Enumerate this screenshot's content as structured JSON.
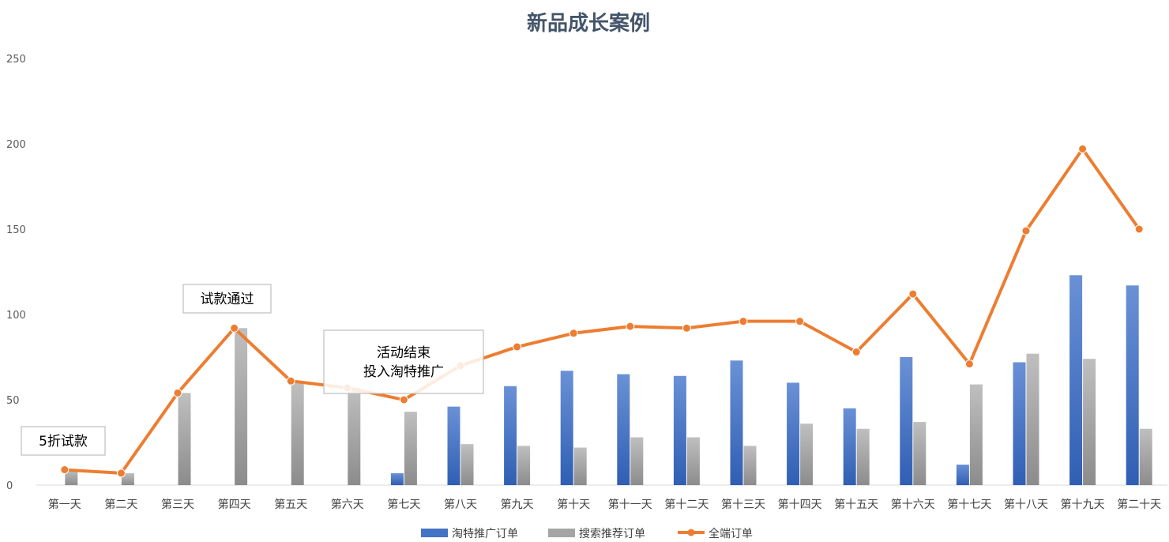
{
  "chart_data": {
    "type": "bar",
    "title": "新品成长案例",
    "categories": [
      "第一天",
      "第二天",
      "第三天",
      "第四天",
      "第五天",
      "第六天",
      "第七天",
      "第八天",
      "第九天",
      "第十天",
      "第十一天",
      "第十二天",
      "第十三天",
      "第十四天",
      "第十五天",
      "第十六天",
      "第十七天",
      "第十八天",
      "第十九天",
      "第二十天"
    ],
    "ylim": [
      0,
      250
    ],
    "yticks": [
      0,
      50,
      100,
      150,
      200,
      250
    ],
    "grid": false,
    "legend_position": "bottom",
    "series": [
      {
        "name": "淘特推广订单",
        "kind": "bar",
        "color": "#4472c4",
        "values": [
          0,
          0,
          0,
          0,
          0,
          0,
          7,
          46,
          58,
          67,
          65,
          64,
          73,
          60,
          45,
          75,
          12,
          72,
          123,
          117
        ]
      },
      {
        "name": "搜索推荐订单",
        "kind": "bar",
        "color": "#a5a5a5",
        "values": [
          9,
          7,
          54,
          92,
          60,
          57,
          43,
          24,
          23,
          22,
          28,
          28,
          23,
          36,
          33,
          37,
          59,
          77,
          74,
          33
        ]
      },
      {
        "name": "全端订单",
        "kind": "line",
        "color": "#ed7d31",
        "values": [
          9,
          7,
          54,
          92,
          61,
          57,
          50,
          70,
          81,
          89,
          93,
          92,
          96,
          96,
          78,
          112,
          71,
          149,
          197,
          150
        ]
      }
    ],
    "annotations": [
      {
        "lines": [
          "5折试款"
        ],
        "category_index": 0
      },
      {
        "lines": [
          "试款通过"
        ],
        "category_index": 3
      },
      {
        "lines": [
          "活动结束",
          "投入淘特推广"
        ],
        "category_index": 6
      }
    ]
  }
}
